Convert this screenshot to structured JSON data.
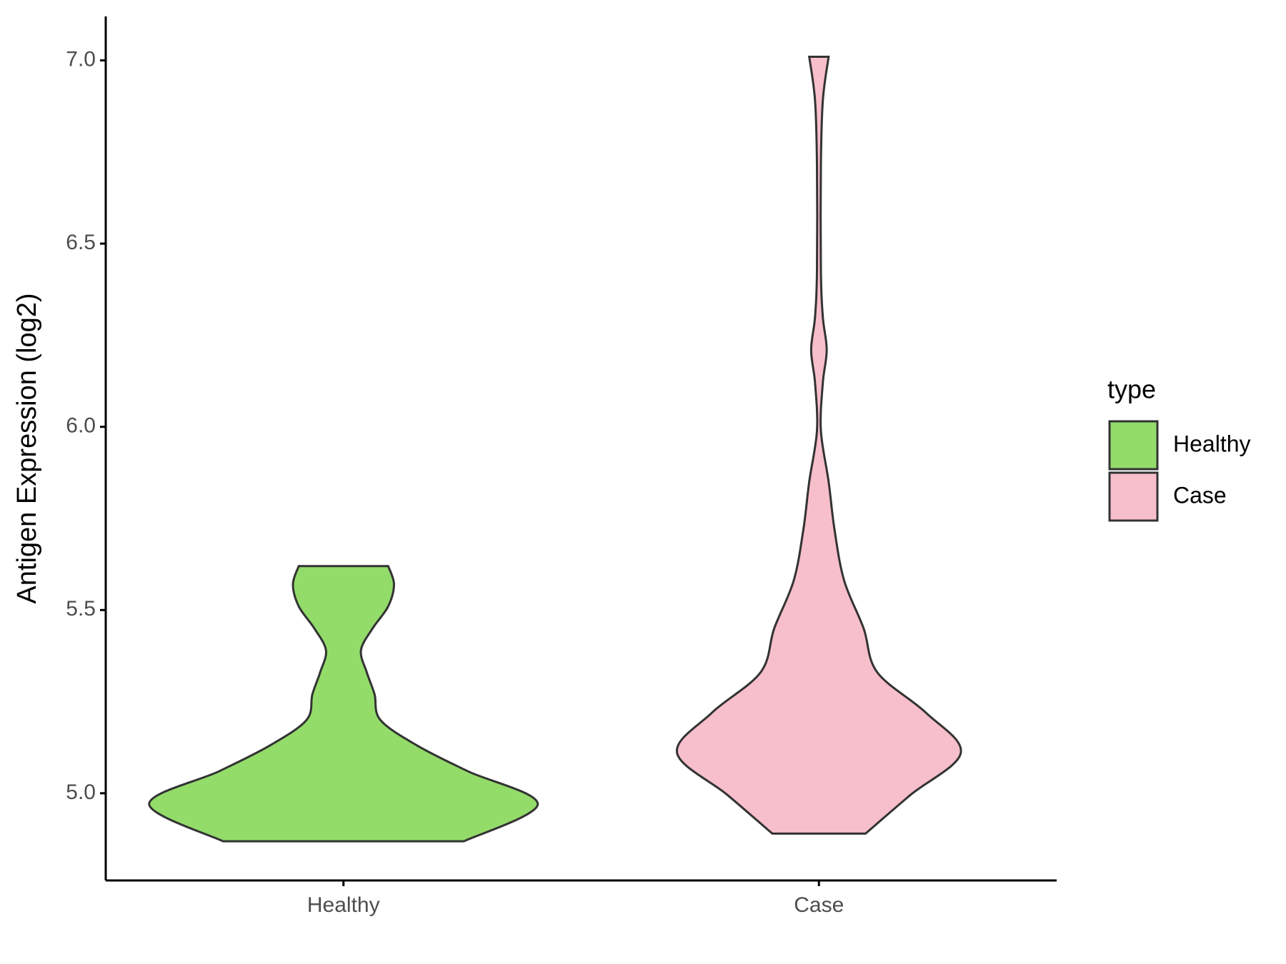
{
  "chart_data": {
    "type": "violin",
    "y_label": "Antigen Expression (log2)",
    "legend_title": "type",
    "legend_position": "right",
    "categories": [
      "Healthy",
      "Case"
    ],
    "ylim": [
      4.762,
      7.12
    ],
    "yticks": [
      {
        "value": 5,
        "label": "5.0"
      },
      {
        "value": 5.5,
        "label": "5.5"
      },
      {
        "value": 6,
        "label": "6.0"
      },
      {
        "value": 6.5,
        "label": "6.5"
      },
      {
        "value": 7,
        "label": "7.0"
      }
    ],
    "series": [
      {
        "name": "Healthy",
        "color": "#93dc6a",
        "y": [
          4.869,
          4.97,
          5.06,
          5.13,
          5.2,
          5.27,
          5.33,
          5.39,
          5.45,
          5.51,
          5.57,
          5.62
        ],
        "width": [
          0.62,
          1.0,
          0.64,
          0.38,
          0.19,
          0.16,
          0.12,
          0.09,
          0.15,
          0.23,
          0.26,
          0.23
        ]
      },
      {
        "name": "Case",
        "color": "#f7bfcb",
        "y": [
          4.89,
          4.995,
          5.11,
          5.22,
          5.33,
          5.45,
          5.58,
          5.72,
          5.85,
          5.99,
          6.12,
          6.21,
          6.3,
          6.43,
          6.71,
          6.89,
          7.01
        ],
        "width": [
          0.24,
          0.47,
          0.73,
          0.55,
          0.3,
          0.23,
          0.13,
          0.08,
          0.05,
          0.01,
          0.02,
          0.04,
          0.02,
          0.01,
          0.01,
          0.02,
          0.05
        ]
      }
    ]
  }
}
